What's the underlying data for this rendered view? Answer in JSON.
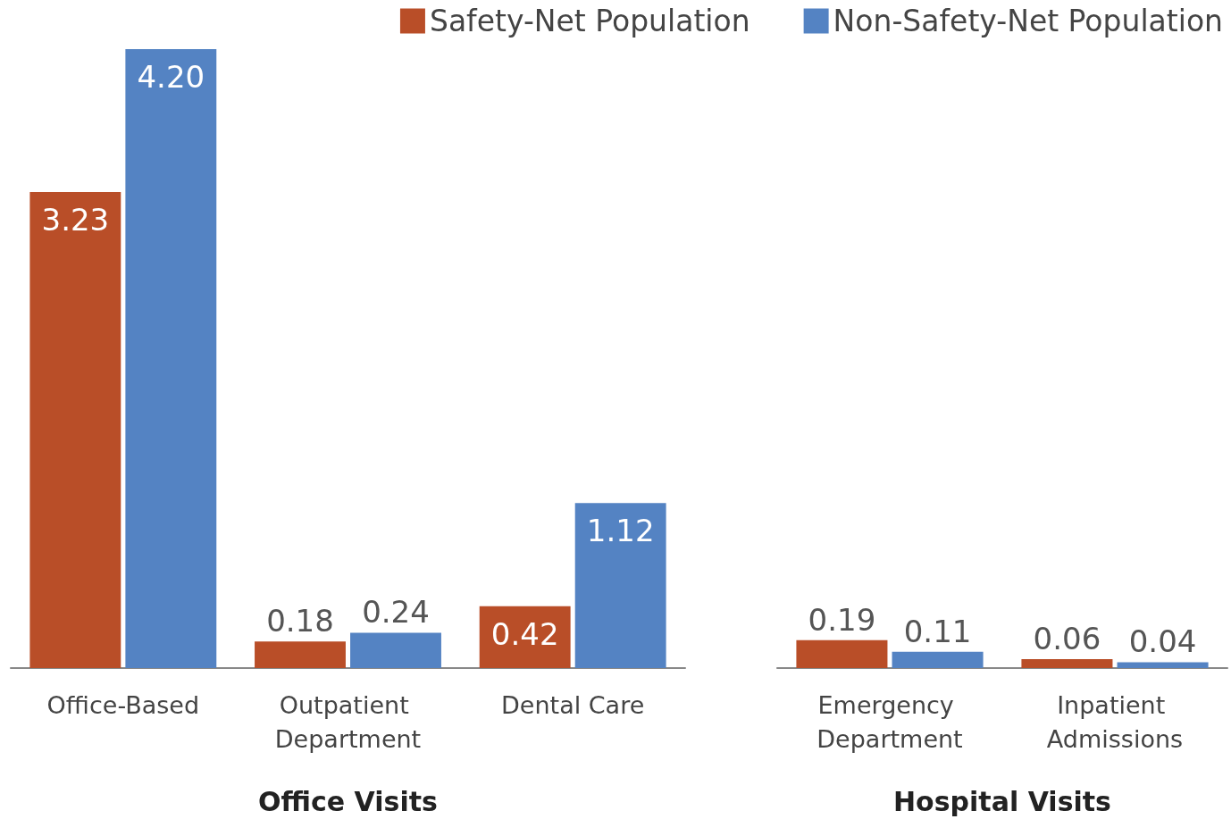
{
  "chart_data": [
    {
      "type": "bar",
      "xlabel": "Office Visits",
      "categories": [
        "Office-Based",
        "Outpatient Department",
        "Dental Care"
      ],
      "series": [
        {
          "name": "Safety-Net Population",
          "color": "#b94e28",
          "values": [
            3.23,
            0.18,
            0.42
          ],
          "value_labels": [
            "3.23",
            "0.18",
            "0.42"
          ]
        },
        {
          "name": "Non-Safety-Net Population",
          "color": "#5483c3",
          "values": [
            4.2,
            0.24,
            1.12
          ],
          "value_labels": [
            "4.20",
            "0.24",
            "1.12"
          ]
        }
      ],
      "legend": "top right",
      "grid": false
    },
    {
      "type": "bar",
      "xlabel": "Hospital Visits",
      "categories": [
        "Emergency Department",
        "Inpatient Admissions"
      ],
      "series": [
        {
          "color": "#b94e28",
          "values": [
            0.19,
            0.06
          ],
          "value_labels": [
            "0.19",
            "0.06"
          ]
        },
        {
          "color": "#5483c3",
          "values": [
            0.11,
            0.04
          ],
          "value_labels": [
            "0.11",
            "0.04"
          ]
        }
      ],
      "legend": false,
      "grid": false
    }
  ]
}
